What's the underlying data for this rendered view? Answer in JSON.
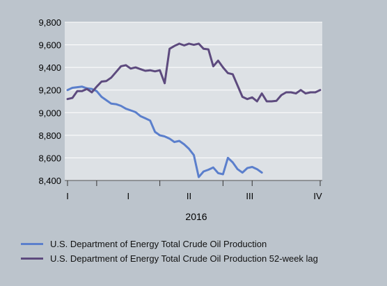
{
  "chart_data": {
    "type": "line",
    "xlabel": "2016",
    "quarter_ticks": [
      "I",
      "I",
      "II",
      "III",
      "IV"
    ],
    "ylim": [
      8400,
      9800
    ],
    "yticks": [
      "9,800",
      "9,600",
      "9,400",
      "9,200",
      "9,000",
      "8,800",
      "8,600",
      "8,400"
    ],
    "ytick_values": [
      9800,
      9600,
      9400,
      9200,
      9000,
      8800,
      8600,
      8400
    ],
    "grid": true,
    "legend_position": "bottom",
    "x_count": 53,
    "series": [
      {
        "name": "U.S. Department of Energy Total Crude Oil Production",
        "color": "#5b7fcc",
        "values": [
          9200,
          9220,
          9225,
          9230,
          9215,
          9210,
          9190,
          9140,
          9110,
          9080,
          9075,
          9060,
          9035,
          9020,
          9005,
          8970,
          8950,
          8930,
          8830,
          8800,
          8790,
          8770,
          8740,
          8750,
          8720,
          8680,
          8625,
          8430,
          8480,
          8495,
          8515,
          8465,
          8455,
          8600,
          8560,
          8500,
          8470,
          8510,
          8520,
          8500,
          8470
        ]
      },
      {
        "name": "U.S. Department of Energy Total Crude Oil Production 52-week lag",
        "color": "#5d4a7e",
        "values": [
          9120,
          9130,
          9190,
          9190,
          9210,
          9180,
          9230,
          9275,
          9280,
          9310,
          9360,
          9410,
          9420,
          9390,
          9400,
          9385,
          9370,
          9375,
          9365,
          9375,
          9260,
          9565,
          9590,
          9610,
          9595,
          9610,
          9600,
          9610,
          9565,
          9560,
          9410,
          9460,
          9400,
          9350,
          9340,
          9240,
          9140,
          9120,
          9135,
          9100,
          9170,
          9100,
          9100,
          9105,
          9155,
          9180,
          9180,
          9170,
          9200,
          9170,
          9180,
          9180,
          9200
        ]
      }
    ]
  }
}
